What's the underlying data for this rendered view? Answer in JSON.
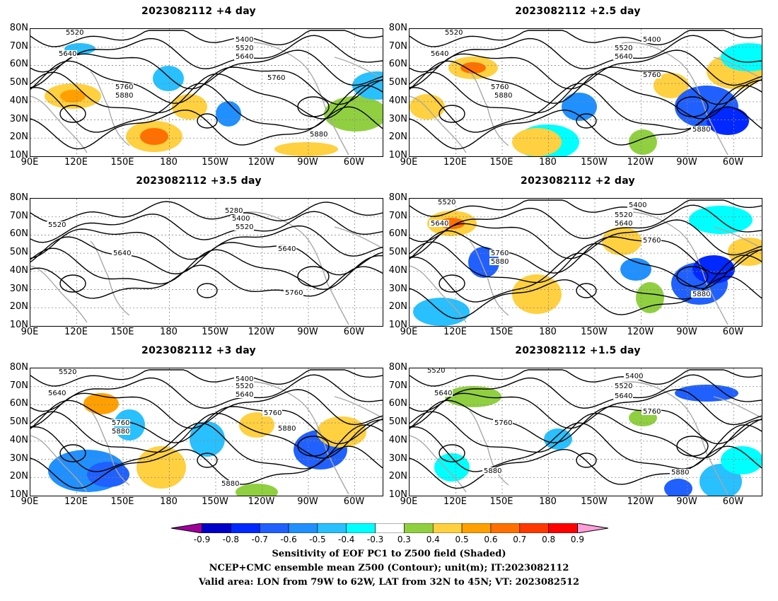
{
  "chart_data": [
    {
      "type": "heatmap",
      "title": "2023082112 +4 day",
      "lat_ticks": [
        "80N",
        "70N",
        "60N",
        "50N",
        "40N",
        "30N",
        "20N",
        "10N"
      ],
      "lon_ticks": [
        "90E",
        "120E",
        "150E",
        "180",
        "150W",
        "120W",
        "90W",
        "60W"
      ],
      "contour_labels": [
        "5520",
        "5640",
        "5400",
        "5520",
        "5640",
        "5760",
        "5760",
        "5880",
        "5880"
      ]
    },
    {
      "type": "heatmap",
      "title": "2023082112 +2.5 day",
      "lat_ticks": [
        "80N",
        "70N",
        "60N",
        "50N",
        "40N",
        "30N",
        "20N",
        "10N"
      ],
      "lon_ticks": [
        "90E",
        "120E",
        "150E",
        "180",
        "150W",
        "120W",
        "90W",
        "60W"
      ],
      "contour_labels": [
        "5520",
        "5640",
        "5400",
        "5520",
        "5640",
        "5760",
        "5760",
        "5880",
        "5880"
      ]
    },
    {
      "type": "heatmap",
      "title": "2023082112 +3.5 day",
      "lat_ticks": [
        "80N",
        "70N",
        "60N",
        "50N",
        "40N",
        "30N",
        "20N",
        "10N"
      ],
      "lon_ticks": [
        "90E",
        "120E",
        "150E",
        "180",
        "150W",
        "120W",
        "90W",
        "60W"
      ],
      "contour_labels": [
        "5280",
        "5400",
        "5520",
        "5520",
        "5640",
        "5640",
        "5760"
      ]
    },
    {
      "type": "heatmap",
      "title": "2023082112 +2 day",
      "lat_ticks": [
        "80N",
        "70N",
        "60N",
        "50N",
        "40N",
        "30N",
        "20N",
        "10N"
      ],
      "lon_ticks": [
        "90E",
        "120E",
        "150E",
        "180",
        "150W",
        "120W",
        "90W",
        "60W"
      ],
      "contour_labels": [
        "5520",
        "5640",
        "5400",
        "5520",
        "5640",
        "5760",
        "5760",
        "5880",
        "5880"
      ]
    },
    {
      "type": "heatmap",
      "title": "2023082112 +3 day",
      "lat_ticks": [
        "80N",
        "70N",
        "60N",
        "50N",
        "40N",
        "30N",
        "20N",
        "10N"
      ],
      "lon_ticks": [
        "90E",
        "120E",
        "150E",
        "180",
        "150W",
        "120W",
        "90W",
        "60W"
      ],
      "contour_labels": [
        "5520",
        "5640",
        "5400",
        "5520",
        "5640",
        "5760",
        "5760",
        "5880",
        "5880",
        "5880"
      ]
    },
    {
      "type": "heatmap",
      "title": "2023082112 +1.5 day",
      "lat_ticks": [
        "80N",
        "70N",
        "60N",
        "50N",
        "40N",
        "30N",
        "20N",
        "10N"
      ],
      "lon_ticks": [
        "90E",
        "120E",
        "150E",
        "180",
        "150W",
        "120W",
        "90W",
        "60W"
      ],
      "contour_labels": [
        "5520",
        "5640",
        "5400",
        "5520",
        "5640",
        "5760",
        "5760",
        "5880",
        "5880"
      ]
    }
  ],
  "colorbar": {
    "ticks": [
      "-0.9",
      "-0.8",
      "-0.7",
      "-0.6",
      "-0.5",
      "-0.4",
      "-0.3",
      "0.3",
      "0.4",
      "0.5",
      "0.6",
      "0.7",
      "0.8",
      "0.9"
    ],
    "colors": [
      "#a0009a",
      "#0000c8",
      "#0028ff",
      "#2060ff",
      "#2090ff",
      "#28c0ff",
      "#00ffff",
      "#ffffff",
      "#90d040",
      "#ffd040",
      "#ffa000",
      "#ff7000",
      "#ff3800",
      "#ff0000",
      "#ff9ed8"
    ]
  },
  "captions": [
    "Sensitivity of EOF PC1 to Z500 field (Shaded)",
    "NCEP+CMC ensemble mean Z500 (Contour); unit(m); IT:2023082112",
    "Valid area: LON from 79W to 62W, LAT from 32N to 45N; VT: 2023082512"
  ]
}
